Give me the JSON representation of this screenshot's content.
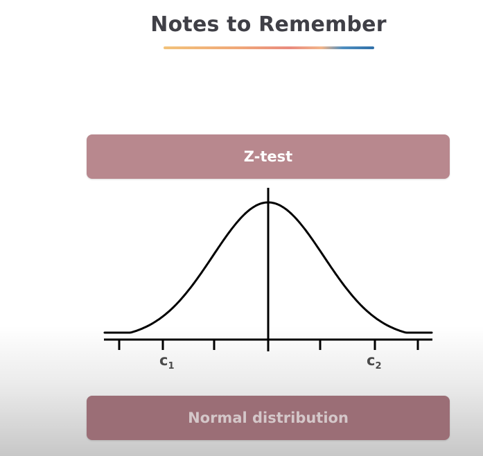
{
  "page": {
    "title": "Notes to Remember",
    "colors": {
      "title_text": "#3f3f46",
      "banner_top": "#b8888e",
      "banner_bottom": "#9b6e76",
      "curve": "#000000"
    }
  },
  "top_banner": {
    "label": "Z-test"
  },
  "bottom_banner": {
    "label": "Normal distribution"
  },
  "diagram": {
    "type": "normal-distribution-curve",
    "critical_values": [
      {
        "base": "c",
        "sub": "1"
      },
      {
        "base": "c",
        "sub": "2"
      }
    ]
  }
}
